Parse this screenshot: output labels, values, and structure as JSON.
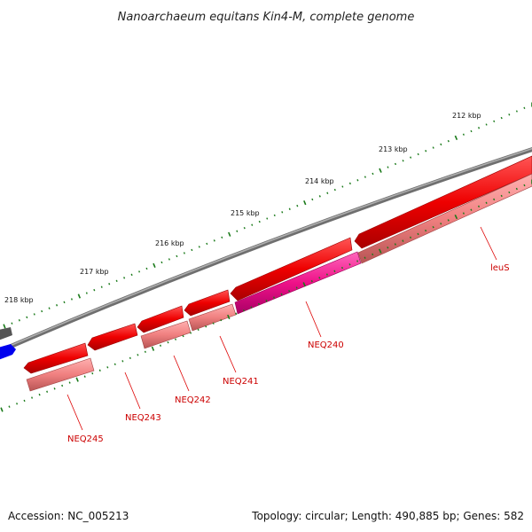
{
  "title": "Nanoarchaeum equitans Kin4-M, complete genome",
  "footer": {
    "accession": "Accession: NC_005213",
    "summary": "Topology: circular; Length: 490,885 bp; Genes: 582"
  },
  "ticks": [
    {
      "label": "212 kbp"
    },
    {
      "label": "213 kbp"
    },
    {
      "label": "214 kbp"
    },
    {
      "label": "215 kbp"
    },
    {
      "label": "216 kbp"
    },
    {
      "label": "217 kbp"
    },
    {
      "label": "218 kbp"
    }
  ],
  "genes": [
    {
      "name": "leuS"
    },
    {
      "name": "NEQ240"
    },
    {
      "name": "NEQ241"
    },
    {
      "name": "NEQ242"
    },
    {
      "name": "NEQ243"
    },
    {
      "name": "NEQ245"
    }
  ],
  "colors": {
    "backbone": "#7a7a7a",
    "cds": "#ee0000",
    "gene": "#f08080",
    "cds_highlight": "#ee1188",
    "tick": "#1a7a1a",
    "label": "#cc0000",
    "other_feature": "#0000ee"
  }
}
